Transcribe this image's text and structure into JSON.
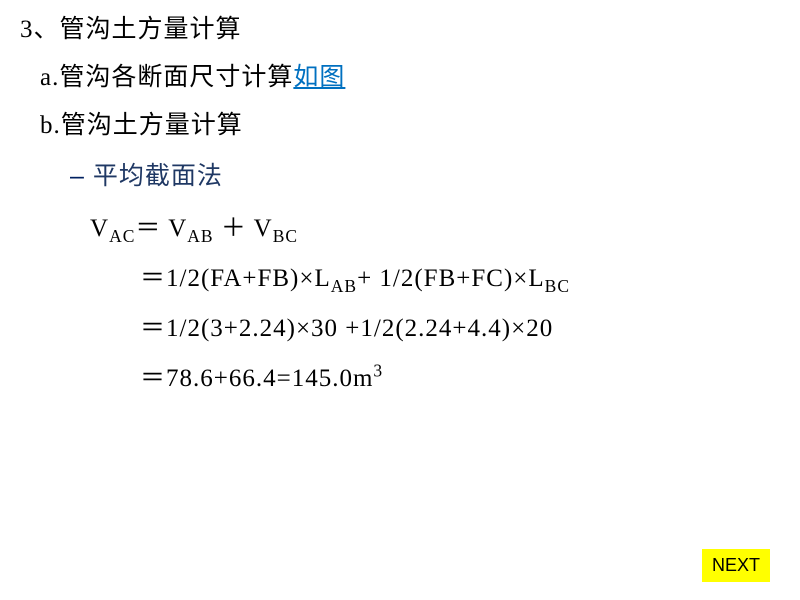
{
  "heading": {
    "number": "3、",
    "title": "管沟土方量计算"
  },
  "item_a": {
    "prefix": "a.",
    "text": "管沟各断面尺寸计算",
    "link_text": "如图"
  },
  "item_b": {
    "prefix": "b.",
    "text": "管沟土方量计算"
  },
  "method": {
    "bullet": "–",
    "label": "平均截面法"
  },
  "formula": {
    "lhs_V": "V",
    "lhs_sub": "AC",
    "eq1_rhs_V1": "V",
    "eq1_rhs_sub1": "AB",
    "eq1_plus": " ＋ ",
    "eq1_rhs_V2": "V",
    "eq1_rhs_sub2": "BC",
    "line2_prefix": "＝1/2(FA+FB)×L",
    "line2_sub1": "AB",
    "line2_mid": "+ 1/2(FB+FC)×L",
    "line2_sub2": "BC",
    "line3": "＝1/2(3+2.24)×30 +1/2(2.24+4.4)×20",
    "line4_main": "＝78.6+66.4=145.0m",
    "line4_sup": "3"
  },
  "next_button": "NEXT",
  "colors": {
    "link": "#0070c0",
    "method_dash": "#002060",
    "method_text": "#1f3864",
    "body_text": "#000000",
    "next_bg": "#ffff00",
    "background": "#ffffff"
  },
  "typography": {
    "body_fontsize": 25,
    "sub_ratio": 0.7
  }
}
